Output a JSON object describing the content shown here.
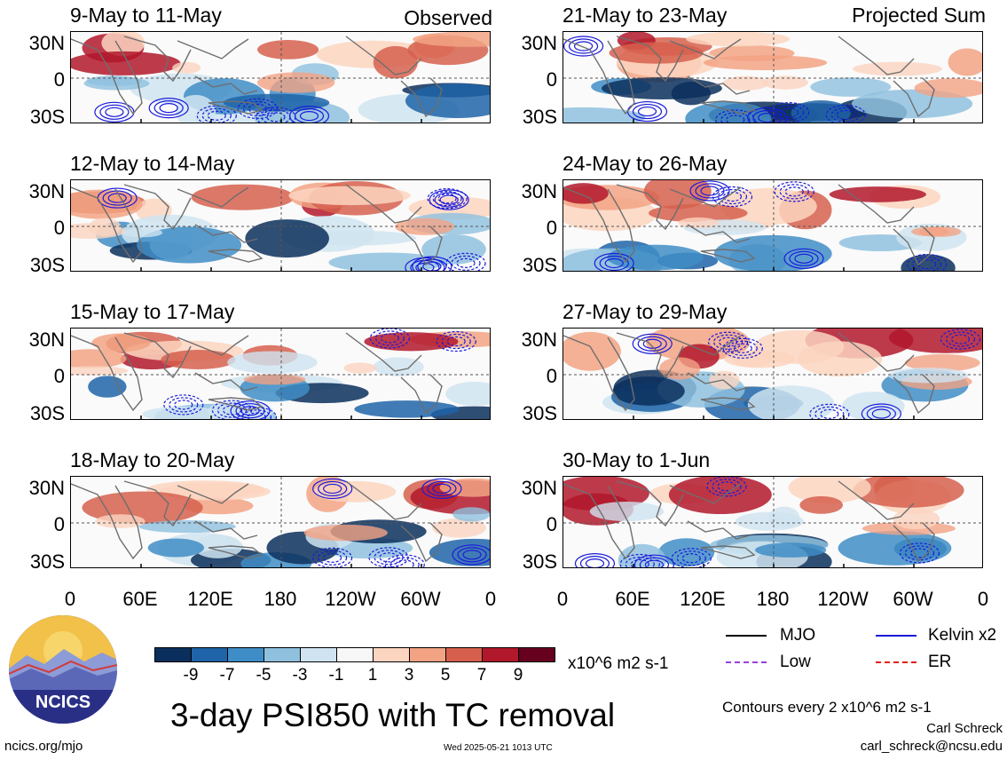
{
  "panels": [
    {
      "title": "9-May to 11-May",
      "tag": "Observed"
    },
    {
      "title": "12-May to 14-May",
      "tag": ""
    },
    {
      "title": "15-May to 17-May",
      "tag": ""
    },
    {
      "title": "18-May to 20-May",
      "tag": ""
    },
    {
      "title": "21-May to 23-May",
      "tag": "Projected Sum"
    },
    {
      "title": "24-May to 26-May",
      "tag": ""
    },
    {
      "title": "27-May to 29-May",
      "tag": ""
    },
    {
      "title": "30-May to 1-Jun",
      "tag": ""
    }
  ],
  "lat_labels": [
    "30N",
    "0",
    "30S"
  ],
  "lon_labels": [
    "0",
    "60E",
    "120E",
    "180",
    "120W",
    "60W",
    "0"
  ],
  "colorbar": {
    "colors": [
      "#0b2f5c",
      "#1f64a8",
      "#3f8dc6",
      "#8fc1de",
      "#cfe4f0",
      "#f7f7f7",
      "#fbd5c0",
      "#f2a384",
      "#d6604d",
      "#b2182b",
      "#67001f"
    ],
    "labels": [
      "-9",
      "-7",
      "-5",
      "-3",
      "-1",
      "1",
      "3",
      "5",
      "7",
      "9"
    ],
    "units": "x10^6 m2 s-1"
  },
  "legend": {
    "items": [
      {
        "label": "MJO",
        "color": "#000000"
      },
      {
        "label": "Kelvin x2",
        "color": "#1a1adb"
      },
      {
        "label": "Low",
        "color": "#9b3fd6"
      },
      {
        "label": "ER",
        "color": "#e0201a"
      }
    ],
    "contour_note": "Contours every 2 x10^6 m2 s-1",
    "author": "Carl Schreck",
    "email": "carl_schreck@ncsu.edu"
  },
  "main_title": "3-day PSI850 with TC removal",
  "logo_text": "NCICS",
  "site": "ncics.org/mjo",
  "timestamp": "Wed 2025-05-21 1013 UTC"
}
